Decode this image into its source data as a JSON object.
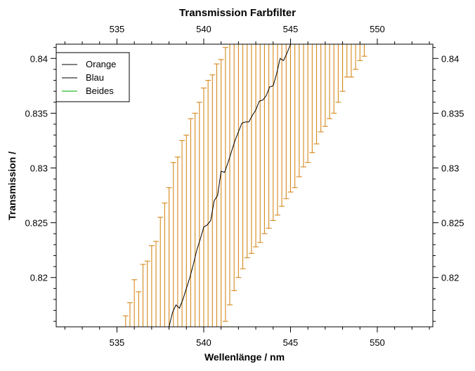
{
  "chart_data": {
    "type": "line",
    "title": "Transmission Farbfilter",
    "xlabel": "Wellenlänge / nm",
    "ylabel": "Transmission /",
    "xlim": [
      531.5,
      553.2
    ],
    "ylim": [
      0.8155,
      0.8413
    ],
    "x_major_ticks": [
      535,
      540,
      545,
      550
    ],
    "y_major_ticks": [
      0.82,
      0.825,
      0.83,
      0.835,
      0.84
    ],
    "x_tick_labels": [
      "535",
      "540",
      "545",
      "550"
    ],
    "y_tick_labels": [
      "0.82",
      "0.825",
      "0.83",
      "0.835",
      "0.84"
    ],
    "grid": false,
    "legend_position": "top-left",
    "legend": [
      "Orange",
      "Blau",
      "Beides"
    ],
    "colors": {
      "Orange": "#000000",
      "Blau": "#000000",
      "Beides": "#2eb82e",
      "error_bars": "#d4891c"
    },
    "series": [
      {
        "name": "Blau",
        "x": [
          538.0,
          538.2,
          538.4,
          538.6,
          538.8,
          539.0,
          539.2,
          539.4,
          539.6,
          539.8,
          540.0,
          540.2,
          540.4,
          540.6,
          540.8,
          541.0,
          541.2,
          541.4,
          541.6,
          541.8,
          542.0,
          542.2,
          542.4,
          542.6,
          542.8,
          543.0,
          543.2,
          543.4,
          543.6,
          543.8,
          544.0,
          544.2,
          544.4,
          544.6,
          544.8,
          545.0
        ],
        "y": [
          0.8155,
          0.8168,
          0.8175,
          0.8172,
          0.818,
          0.819,
          0.82,
          0.8212,
          0.8225,
          0.8235,
          0.8246,
          0.8248,
          0.8252,
          0.827,
          0.8275,
          0.8297,
          0.8296,
          0.8305,
          0.8315,
          0.8325,
          0.8333,
          0.8341,
          0.8342,
          0.8342,
          0.8348,
          0.8353,
          0.8361,
          0.8362,
          0.8366,
          0.8374,
          0.8375,
          0.8386,
          0.84,
          0.8398,
          0.8405,
          0.8413
        ]
      }
    ],
    "error_bars": {
      "name": "Orange",
      "x": [
        535.25,
        535.5,
        535.75,
        536.0,
        536.25,
        536.5,
        536.75,
        537.0,
        537.25,
        537.5,
        537.75,
        538.0,
        538.25,
        538.5,
        538.75,
        539.0,
        539.25,
        539.5,
        539.75,
        540.0,
        540.25,
        540.5,
        540.75,
        541.0,
        541.25,
        541.5,
        541.75,
        542.0,
        542.25,
        542.5,
        542.75,
        543.0,
        543.25,
        543.5,
        543.75,
        544.0,
        544.25,
        544.5,
        544.75,
        545.0,
        545.25,
        545.5,
        545.75,
        546.0,
        546.25,
        546.5,
        546.75,
        547.0,
        547.25,
        547.5,
        547.75,
        548.0,
        548.25,
        548.5,
        548.75,
        549.0,
        549.25
      ],
      "top": [
        0.8155,
        0.8165,
        0.8177,
        0.8198,
        0.8187,
        0.8212,
        0.8215,
        0.8229,
        0.8233,
        0.8255,
        0.8268,
        0.8282,
        0.8305,
        0.831,
        0.8325,
        0.833,
        0.8345,
        0.835,
        0.836,
        0.8373,
        0.838,
        0.8385,
        0.8395,
        0.8399,
        0.841,
        0.8413,
        0.8413,
        0.8413,
        0.8413,
        0.8413,
        0.8413,
        0.8413,
        0.8413,
        0.8413,
        0.8413,
        0.8413,
        0.8413,
        0.8413,
        0.8413,
        0.8413,
        0.8413,
        0.8413,
        0.8413,
        0.8413,
        0.8413,
        0.8413,
        0.8413,
        0.8413,
        0.8413,
        0.8413,
        0.8413,
        0.8413,
        0.8413,
        0.8413,
        0.8413,
        0.8413,
        0.8413
      ],
      "bottom": [
        0.8155,
        0.8155,
        0.8155,
        0.8155,
        0.8155,
        0.8155,
        0.8155,
        0.8155,
        0.8155,
        0.8155,
        0.8155,
        0.8155,
        0.8155,
        0.8155,
        0.8155,
        0.8155,
        0.8155,
        0.8155,
        0.8155,
        0.8155,
        0.8155,
        0.8155,
        0.8155,
        0.8155,
        0.816,
        0.8175,
        0.8188,
        0.82,
        0.8208,
        0.8218,
        0.8222,
        0.8228,
        0.8232,
        0.824,
        0.8245,
        0.8252,
        0.8257,
        0.8265,
        0.8272,
        0.8278,
        0.8282,
        0.8292,
        0.8301,
        0.8305,
        0.8314,
        0.8322,
        0.8333,
        0.8338,
        0.8345,
        0.835,
        0.836,
        0.837,
        0.8383,
        0.8383,
        0.839,
        0.8398,
        0.8402
      ]
    }
  }
}
